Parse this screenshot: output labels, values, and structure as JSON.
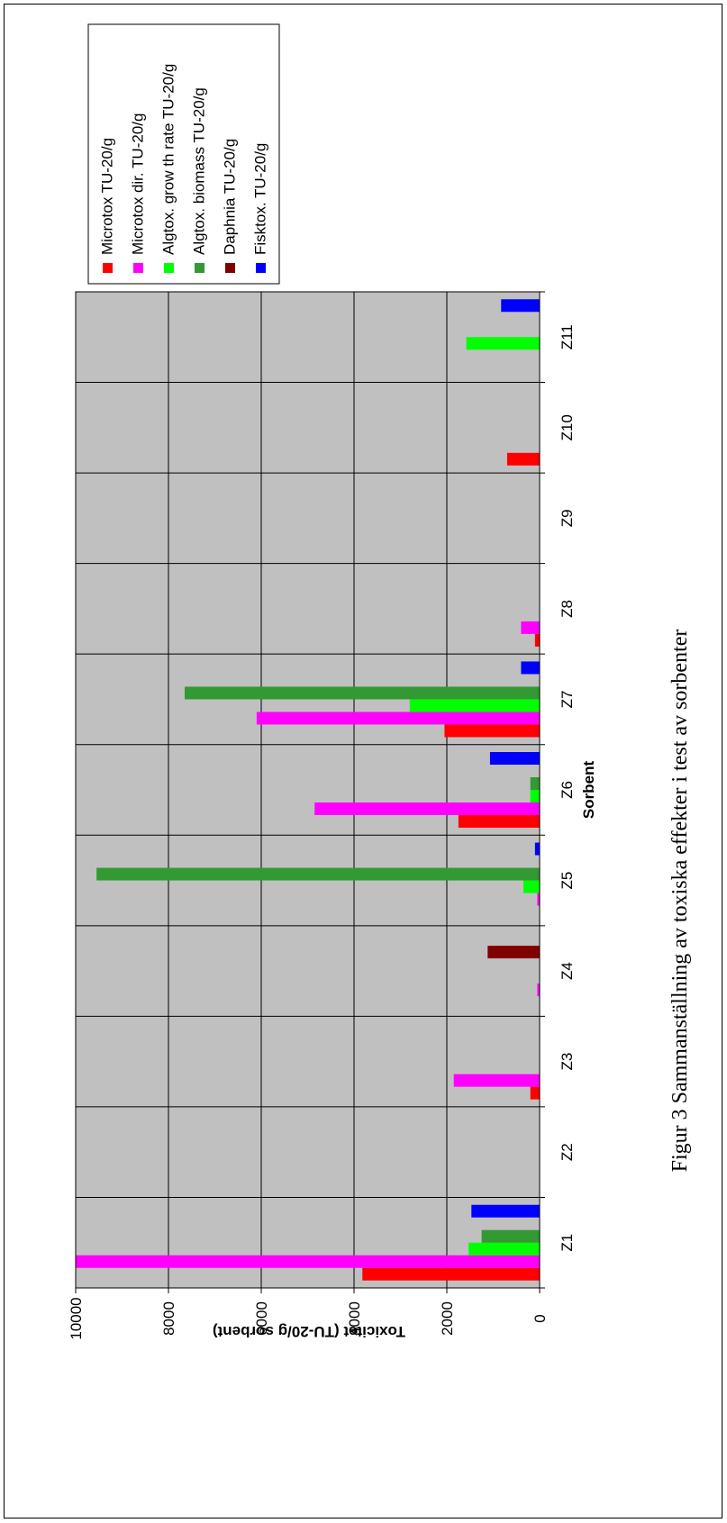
{
  "chart_data": {
    "type": "bar",
    "orientation": "horizontal-rotated",
    "caption": "Figur 3 Sammanställning av toxiska effekter i test av sorbenter",
    "xlabel": "Sorbent",
    "ylabel": "Toxicitet (TU-20/g sorbent)",
    "ylim": [
      0,
      10000
    ],
    "yticks": [
      "0",
      "2000",
      "4000",
      "6000",
      "8000",
      "10000"
    ],
    "categories": [
      "Z1",
      "Z2",
      "Z3",
      "Z4",
      "Z5",
      "Z6",
      "Z7",
      "Z8",
      "Z9",
      "Z10",
      "Z11"
    ],
    "grid": true,
    "legend_position": "top",
    "series": [
      {
        "name": "Microtox TU-20/g",
        "color": "#ff0000",
        "values": [
          3820,
          0,
          200,
          0,
          0,
          1750,
          2050,
          100,
          0,
          700,
          0
        ]
      },
      {
        "name": "Microtox dir. TU-20/g",
        "color": "#ff00ff",
        "values": [
          10000,
          0,
          1850,
          50,
          50,
          4850,
          6100,
          400,
          0,
          0,
          0
        ]
      },
      {
        "name": "Algtox. grow th rate TU-20/g",
        "color": "#00ff00",
        "values": [
          1530,
          0,
          0,
          0,
          350,
          200,
          2800,
          0,
          0,
          0,
          1580
        ]
      },
      {
        "name": "Algtox. biomass TU-20/g",
        "color": "#339933",
        "values": [
          1250,
          0,
          0,
          0,
          9550,
          200,
          7650,
          0,
          0,
          0,
          0
        ]
      },
      {
        "name": "Daphnia TU-20/g",
        "color": "#800000",
        "values": [
          0,
          0,
          0,
          1120,
          0,
          0,
          0,
          0,
          0,
          0,
          0
        ]
      },
      {
        "name": "Fisktox. TU-20/g",
        "color": "#0000ff",
        "values": [
          1470,
          0,
          0,
          0,
          100,
          1070,
          400,
          0,
          0,
          0,
          830
        ]
      }
    ]
  }
}
